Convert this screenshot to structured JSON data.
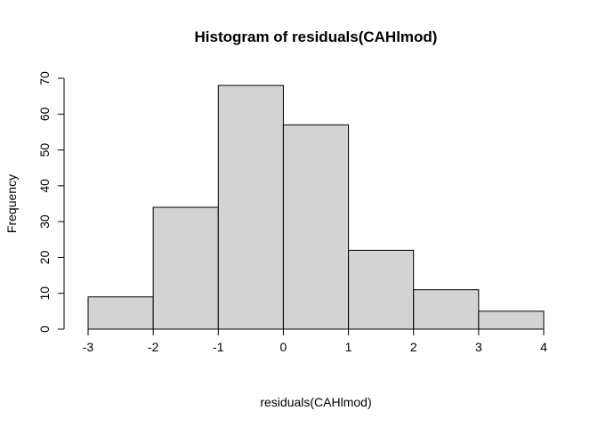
{
  "chart_data": {
    "type": "bar",
    "title": "Histogram of residuals(CAHlmod)",
    "xlabel": "residuals(CAHlmod)",
    "ylabel": "Frequency",
    "bins": [
      {
        "x0": -3,
        "x1": -2,
        "count": 9
      },
      {
        "x0": -2,
        "x1": -1,
        "count": 34
      },
      {
        "x0": -1,
        "x1": 0,
        "count": 68
      },
      {
        "x0": 0,
        "x1": 1,
        "count": 57
      },
      {
        "x0": 1,
        "x1": 2,
        "count": 22
      },
      {
        "x0": 2,
        "x1": 3,
        "count": 11
      },
      {
        "x0": 3,
        "x1": 4,
        "count": 5
      }
    ],
    "xlim": [
      -3,
      4
    ],
    "ylim": [
      0,
      70
    ],
    "x_ticks": [
      "-3",
      "-2",
      "-1",
      "0",
      "1",
      "2",
      "3",
      "4"
    ],
    "y_ticks": [
      "0",
      "10",
      "20",
      "30",
      "40",
      "50",
      "60",
      "70"
    ],
    "bar_fill": "#d3d3d3",
    "bar_stroke": "#000000",
    "grid": false,
    "legend": "none"
  }
}
